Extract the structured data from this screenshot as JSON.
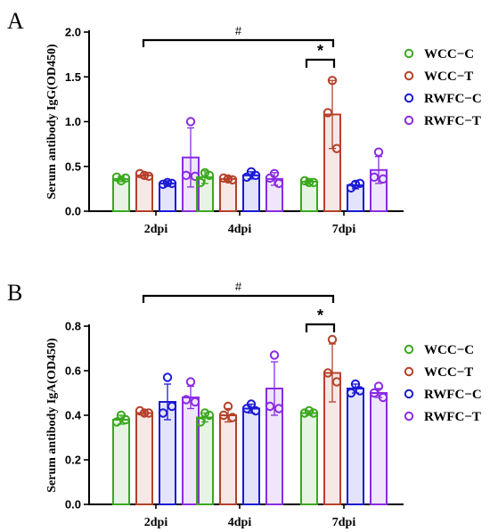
{
  "figure": {
    "legend": [
      {
        "label": "WCC−C",
        "color": "#3aa81e"
      },
      {
        "label": "WCC−T",
        "color": "#b5412a"
      },
      {
        "label": "RWFC−C",
        "color": "#1a1ad6"
      },
      {
        "label": "RWFC−T",
        "color": "#8a2be2"
      }
    ],
    "colors": {
      "WCC-C": "#3aa81e",
      "WCC-T": "#b5412a",
      "RWFC-C": "#1a1ad6",
      "RWFC-T": "#8a2be2"
    }
  },
  "chart_data": [
    {
      "type": "bar",
      "panel_letter": "A",
      "ylabel": "Serum antibody IgG(OD450)",
      "xlabel": "",
      "categories": [
        "2dpi",
        "4dpi",
        "7dpi"
      ],
      "ylim": [
        0,
        2.0
      ],
      "yticks": [
        0,
        0.5,
        1.0,
        1.5,
        2.0
      ],
      "ytick_labels": [
        "0.0",
        "0.5",
        "1.0",
        "1.5",
        "2.0"
      ],
      "grid": false,
      "legend_position": "right",
      "series": [
        {
          "name": "WCC−C",
          "values": [
            0.36,
            0.38,
            0.33
          ],
          "errors": [
            0.03,
            0.07,
            0.03
          ],
          "points": [
            [
              0.34,
              0.38,
              0.37
            ],
            [
              0.43,
              0.32,
              0.4
            ],
            [
              0.32,
              0.34,
              0.32
            ]
          ]
        },
        {
          "name": "WCC−T",
          "values": [
            0.4,
            0.36,
            1.08
          ],
          "errors": [
            0.03,
            0.03,
            0.38
          ],
          "points": [
            [
              0.4,
              0.42,
              0.39
            ],
            [
              0.36,
              0.37,
              0.35
            ],
            [
              1.46,
              1.1,
              0.7
            ]
          ]
        },
        {
          "name": "RWFC−C",
          "values": [
            0.31,
            0.4,
            0.29
          ],
          "errors": [
            0.03,
            0.04,
            0.04
          ],
          "points": [
            [
              0.32,
              0.3,
              0.31
            ],
            [
              0.44,
              0.38,
              0.4
            ],
            [
              0.3,
              0.26,
              0.31
            ]
          ]
        },
        {
          "name": "RWFC−T",
          "values": [
            0.6,
            0.36,
            0.46
          ],
          "errors": [
            0.33,
            0.07,
            0.15
          ],
          "points": [
            [
              1.0,
              0.4,
              0.39
            ],
            [
              0.42,
              0.37,
              0.31
            ],
            [
              0.66,
              0.38,
              0.36
            ]
          ]
        }
      ],
      "annotations": [
        {
          "text": "#",
          "between": [
            "2dpi WCC−T",
            "7dpi WCC−T"
          ]
        },
        {
          "text": "*",
          "between": [
            "7dpi WCC−C",
            "7dpi WCC−T"
          ]
        }
      ]
    },
    {
      "type": "bar",
      "panel_letter": "B",
      "ylabel": "Serum antibody IgA(OD450)",
      "xlabel": "",
      "categories": [
        "2dpi",
        "4dpi",
        "7dpi"
      ],
      "ylim": [
        0,
        0.8
      ],
      "yticks": [
        0,
        0.2,
        0.4,
        0.6,
        0.8
      ],
      "ytick_labels": [
        "0.0",
        "0.2",
        "0.4",
        "0.6",
        "0.8"
      ],
      "grid": false,
      "legend_position": "right",
      "series": [
        {
          "name": "WCC−C",
          "values": [
            0.38,
            0.39,
            0.41
          ],
          "errors": [
            0.02,
            0.02,
            0.01
          ],
          "points": [
            [
              0.4,
              0.37,
              0.38
            ],
            [
              0.41,
              0.37,
              0.4
            ],
            [
              0.42,
              0.41,
              0.41
            ]
          ]
        },
        {
          "name": "WCC−T",
          "values": [
            0.41,
            0.4,
            0.59
          ],
          "errors": [
            0.01,
            0.03,
            0.13
          ],
          "points": [
            [
              0.41,
              0.42,
              0.41
            ],
            [
              0.44,
              0.4,
              0.39
            ],
            [
              0.74,
              0.59,
              0.55
            ]
          ]
        },
        {
          "name": "RWFC−C",
          "values": [
            0.46,
            0.43,
            0.52
          ],
          "errors": [
            0.08,
            0.02,
            0.02
          ],
          "points": [
            [
              0.57,
              0.41,
              0.44
            ],
            [
              0.45,
              0.43,
              0.42
            ],
            [
              0.54,
              0.5,
              0.51
            ]
          ]
        },
        {
          "name": "RWFC−T",
          "values": [
            0.48,
            0.52,
            0.5
          ],
          "errors": [
            0.05,
            0.12,
            0.02
          ],
          "points": [
            [
              0.55,
              0.47,
              0.46
            ],
            [
              0.67,
              0.44,
              0.43
            ],
            [
              0.53,
              0.5,
              0.48
            ]
          ]
        }
      ],
      "annotations": [
        {
          "text": "#",
          "between": [
            "2dpi WCC−T",
            "7dpi WCC−T"
          ]
        },
        {
          "text": "*",
          "between": [
            "7dpi WCC−C",
            "7dpi WCC−T"
          ]
        }
      ]
    }
  ]
}
